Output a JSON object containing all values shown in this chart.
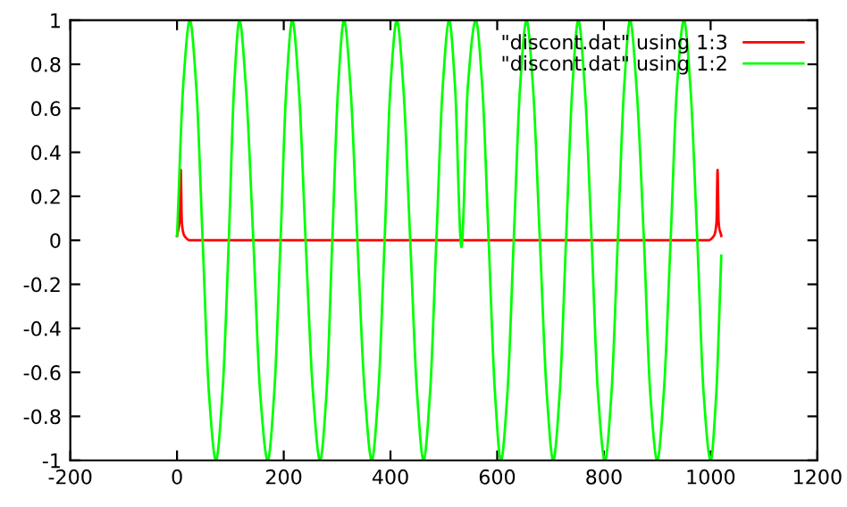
{
  "chart_data": {
    "type": "line",
    "xlim": [
      -200,
      1200
    ],
    "ylim": [
      -1,
      1
    ],
    "xticks": [
      -200,
      0,
      200,
      400,
      600,
      800,
      1000,
      1200
    ],
    "yticks": [
      -1,
      -0.8,
      -0.6,
      -0.4,
      -0.2,
      0,
      0.2,
      0.4,
      0.6,
      0.8,
      1
    ],
    "grid": false,
    "legend": "top right",
    "marker": "none",
    "line_style": "solid",
    "series": [
      {
        "name": "\"discont.dat\" using 1:3",
        "color": "#ff0000",
        "x": [
          0,
          5,
          7,
          9,
          14,
          25,
          995,
          1006,
          1011,
          1013,
          1015,
          1020
        ],
        "values": [
          0.02,
          0.1,
          0.32,
          0.08,
          0.02,
          0,
          0,
          0.02,
          0.08,
          0.32,
          0.08,
          0.02
        ]
      },
      {
        "name": "\"discont.dat\" using 1:2",
        "color": "#00ff00",
        "x": [
          0,
          12,
          24,
          36,
          48,
          60,
          73,
          85,
          97,
          107,
          117,
          129,
          143,
          156,
          170,
          182,
          194,
          205,
          216,
          228,
          241,
          255,
          268,
          280,
          291,
          302,
          313,
          325,
          338,
          352,
          365,
          377,
          389,
          400,
          412,
          424,
          437,
          450,
          462,
          474,
          486,
          498,
          510,
          521,
          533,
          545,
          560,
          572,
          584,
          596,
          607,
          619,
          631,
          643,
          655,
          667,
          680,
          693,
          705,
          717,
          729,
          741,
          752,
          764,
          777,
          789,
          802,
          814,
          826,
          838,
          849,
          861,
          875,
          887,
          900,
          912,
          925,
          937,
          950,
          962,
          975,
          987,
          1000,
          1010,
          1020
        ],
        "values": [
          0.02,
          0.72,
          1,
          0.7,
          0,
          -0.7,
          -1,
          -0.7,
          0,
          0.7,
          1,
          0.7,
          0,
          -0.7,
          -1,
          -0.7,
          0,
          0.7,
          1,
          0.7,
          0,
          -0.7,
          -1,
          -0.7,
          0,
          0.7,
          1,
          0.7,
          0,
          -0.7,
          -1,
          -0.7,
          0,
          0.7,
          1,
          0.7,
          0,
          -0.7,
          -1,
          -0.7,
          0,
          0.7,
          1,
          0.7,
          -0.03,
          0.7,
          1,
          0.7,
          0,
          -0.7,
          -1,
          -0.7,
          0,
          0.7,
          1,
          0.7,
          0,
          -0.7,
          -1,
          -0.7,
          0,
          0.7,
          1,
          0.7,
          0,
          -0.7,
          -1,
          -0.7,
          0,
          0.7,
          1,
          0.7,
          0,
          -0.7,
          -1,
          -0.7,
          0,
          0.7,
          1,
          0.7,
          0,
          -0.7,
          -1,
          -0.72,
          -0.07
        ]
      }
    ]
  }
}
